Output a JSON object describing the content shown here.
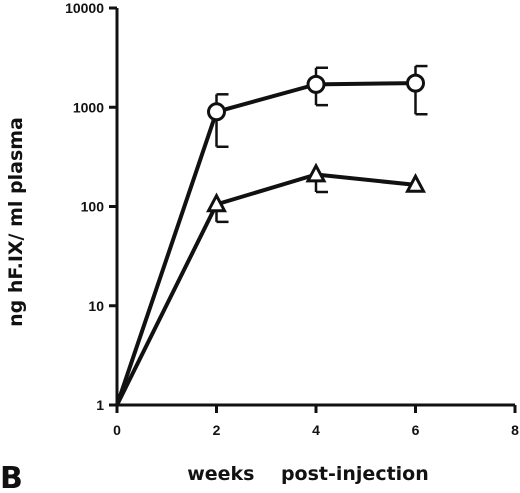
{
  "chart_data": {
    "type": "line",
    "panel_label": "B",
    "xlabel": "weeks    post-injection",
    "ylabel": "ng hF.IX/ ml plasma",
    "xlim": [
      0,
      8
    ],
    "ylim": [
      1,
      10000
    ],
    "yscale": "log",
    "x_ticks": [
      "0",
      "2",
      "4",
      "6",
      "8"
    ],
    "y_ticks": [
      "1",
      "10",
      "100",
      "1000",
      "10000"
    ],
    "grid": false,
    "series": [
      {
        "marker": "circle",
        "x": [
          0,
          2,
          4,
          6
        ],
        "y": [
          1,
          900,
          1700,
          1750
        ],
        "err_low": [
          null,
          400,
          1050,
          850
        ],
        "err_high": [
          null,
          1350,
          2500,
          2600
        ]
      },
      {
        "marker": "triangle",
        "x": [
          0,
          2,
          4,
          6
        ],
        "y": [
          1,
          105,
          210,
          165
        ],
        "err_low": [
          null,
          70,
          140,
          null
        ],
        "err_high": [
          null,
          null,
          null,
          null
        ]
      }
    ]
  }
}
